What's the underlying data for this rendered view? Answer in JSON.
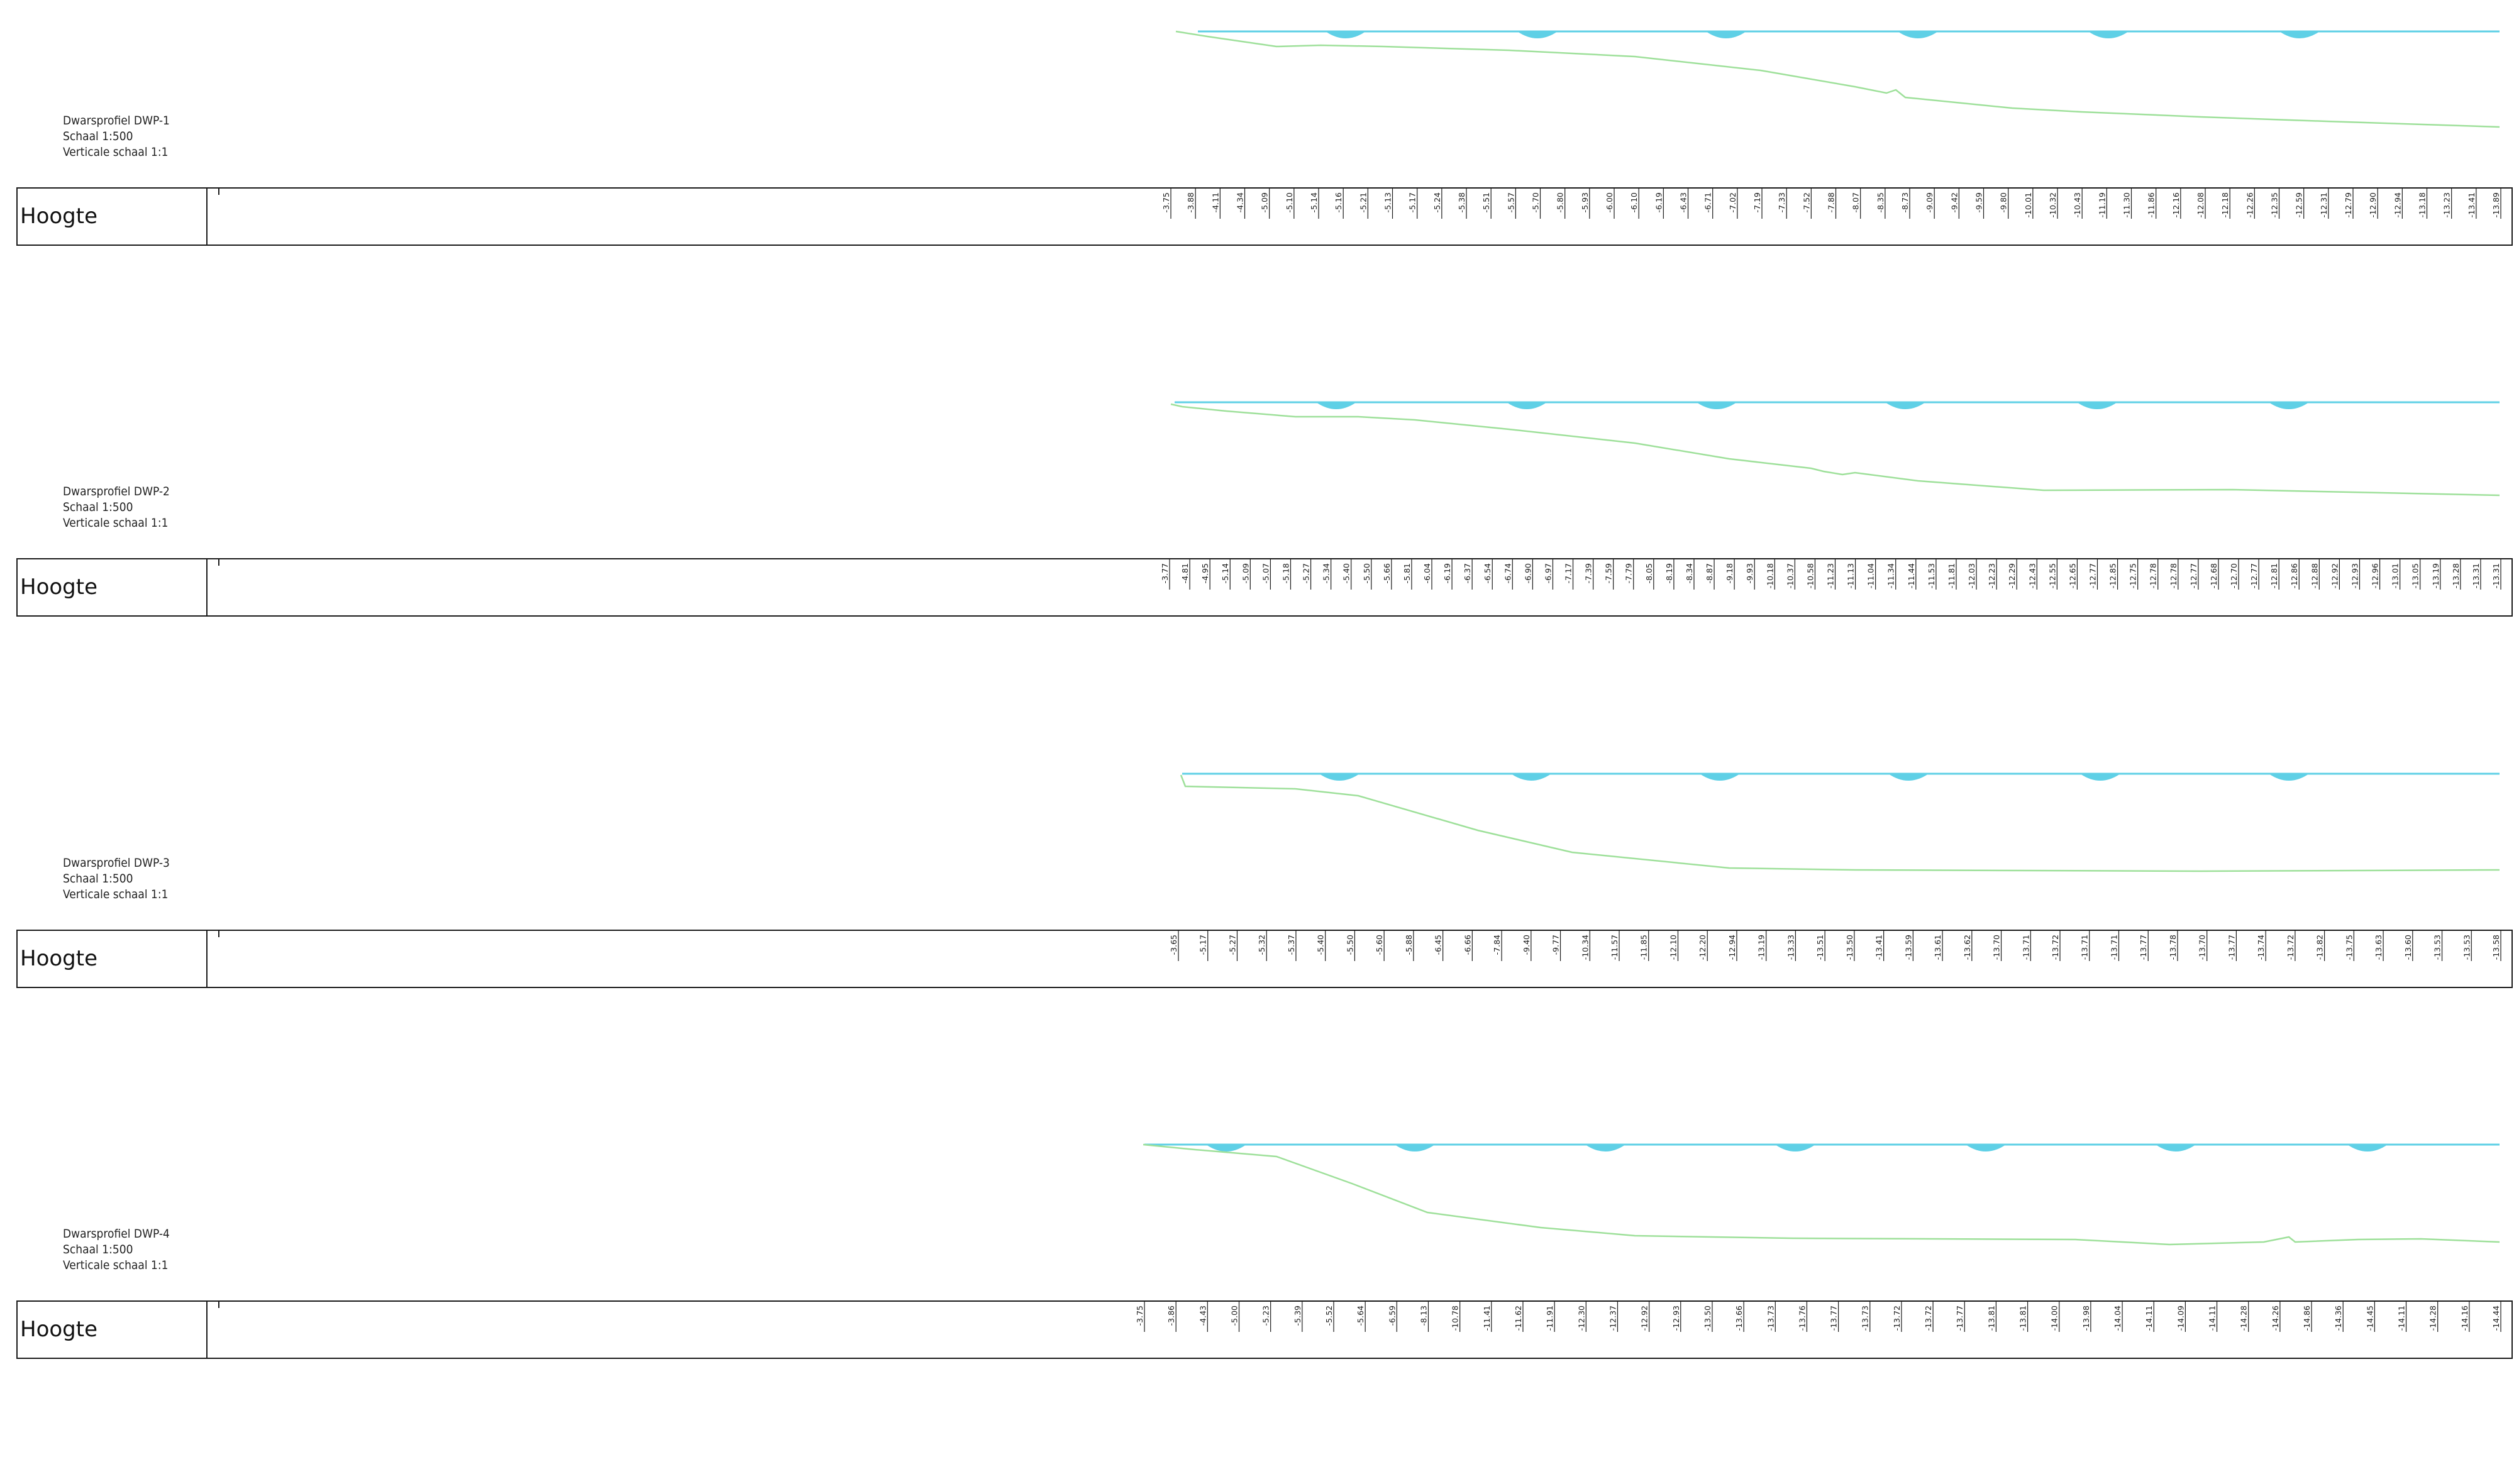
{
  "colors": {
    "water": "#5fd0e6",
    "ground": "#9ee09a",
    "frame": "#1a1a1a"
  },
  "row_label": "Hoogte",
  "profiles": [
    {
      "name": "Dwarsprofiel DWP-1",
      "scale": "Schaal 1:500",
      "vscale": "Verticale schaal 1:1",
      "heights": [
        "-3.75",
        "-3.88",
        "-4.11",
        "-4.34",
        "-5.09",
        "-5.10",
        "-5.14",
        "-5.16",
        "-5.21",
        "-5.13",
        "-5.17",
        "-5.24",
        "-5.38",
        "-5.51",
        "-5.57",
        "-5.70",
        "-5.80",
        "-5.93",
        "-6.00",
        "-6.10",
        "-6.19",
        "-6.43",
        "-6.71",
        "-7.02",
        "-7.19",
        "-7.33",
        "-7.52",
        "-7.88",
        "-8.07",
        "-8.35",
        "-8.73",
        "-9.09",
        "-9.42",
        "-9.59",
        "-9.80",
        "-10.01",
        "-10.32",
        "-10.43",
        "-11.19",
        "-11.30",
        "-11.86",
        "-12.16",
        "-12.08",
        "-12.18",
        "-12.26",
        "-12.35",
        "-12.59",
        "-12.31",
        "-12.79",
        "-12.90",
        "-12.94",
        "-13.18",
        "-13.23",
        "-13.41",
        "-13.89"
      ]
    },
    {
      "name": "Dwarsprofiel DWP-2",
      "scale": "Schaal 1:500",
      "vscale": "Verticale schaal 1:1",
      "heights": [
        "-3.77",
        "-4.81",
        "-4.95",
        "-5.14",
        "-5.09",
        "-5.07",
        "-5.18",
        "-5.27",
        "-5.34",
        "-5.40",
        "-5.50",
        "-5.66",
        "-5.81",
        "-6.04",
        "-6.19",
        "-6.37",
        "-6.54",
        "-6.74",
        "-6.90",
        "-6.97",
        "-7.17",
        "-7.39",
        "-7.59",
        "-7.79",
        "-8.05",
        "-8.19",
        "-8.34",
        "-8.87",
        "-9.18",
        "-9.93",
        "-10.18",
        "-10.37",
        "-10.58",
        "-11.23",
        "-11.13",
        "-11.04",
        "-11.34",
        "-11.44",
        "-11.53",
        "-11.81",
        "-12.03",
        "-12.23",
        "-12.29",
        "-12.43",
        "-12.55",
        "-12.65",
        "-12.77",
        "-12.85",
        "-12.75",
        "-12.78",
        "-12.78",
        "-12.77",
        "-12.68",
        "-12.70",
        "-12.77",
        "-12.81",
        "-12.86",
        "-12.88",
        "-12.92",
        "-12.93",
        "-12.96",
        "-13.01",
        "-13.05",
        "-13.19",
        "-13.28",
        "-13.31",
        "-13.31"
      ]
    },
    {
      "name": "Dwarsprofiel DWP-3",
      "scale": "Schaal 1:500",
      "vscale": "Verticale schaal 1:1",
      "heights": [
        "-3.65",
        "-5.17",
        "-5.27",
        "-5.32",
        "-5.37",
        "-5.40",
        "-5.50",
        "-5.60",
        "-5.88",
        "-6.45",
        "-6.66",
        "-7.84",
        "-9.40",
        "-9.77",
        "-10.34",
        "-11.57",
        "-11.85",
        "-12.10",
        "-12.20",
        "-12.94",
        "-13.19",
        "-13.33",
        "-13.51",
        "-13.50",
        "-13.41",
        "-13.59",
        "-13.61",
        "-13.62",
        "-13.70",
        "-13.71",
        "-13.72",
        "-13.71",
        "-13.71",
        "-13.77",
        "-13.78",
        "-13.70",
        "-13.77",
        "-13.74",
        "-13.72",
        "-13.82",
        "-13.75",
        "-13.63",
        "-13.60",
        "-13.53",
        "-13.53",
        "-13.58"
      ]
    },
    {
      "name": "Dwarsprofiel DWP-4",
      "scale": "Schaal 1:500",
      "vscale": "Verticale schaal 1:1",
      "heights": [
        "-3.75",
        "-3.86",
        "-4.43",
        "-5.00",
        "-5.23",
        "-5.39",
        "-5.52",
        "-5.64",
        "-6.59",
        "-8.13",
        "-10.78",
        "-11.41",
        "-11.62",
        "-11.91",
        "-12.30",
        "-12.37",
        "-12.92",
        "-12.93",
        "-13.50",
        "-13.66",
        "-13.73",
        "-13.76",
        "-13.77",
        "-13.73",
        "-13.72",
        "-13.72",
        "-13.77",
        "-13.81",
        "-13.81",
        "-14.00",
        "-13.98",
        "-14.04",
        "-14.11",
        "-14.09",
        "-14.11",
        "-14.28",
        "-14.26",
        "-14.86",
        "-14.36",
        "-14.45",
        "-14.11",
        "-14.28",
        "-14.16",
        "-14.44"
      ]
    }
  ]
}
